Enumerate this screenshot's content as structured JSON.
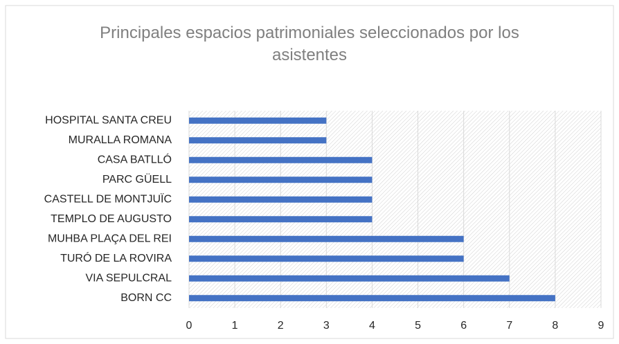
{
  "chart_data": {
    "type": "bar",
    "orientation": "horizontal",
    "title": "Principales espacios patrimoniales seleccionados por los asistentes",
    "categories": [
      "HOSPITAL SANTA CREU",
      "MURALLA ROMANA",
      "CASA BATLLÓ",
      "PARC GÜELL",
      "CASTELL DE MONTJUÏC",
      "TEMPLO DE AUGUSTO",
      "MUHBA PLAÇA DEL REI",
      "TURÓ DE LA ROVIRA",
      "VIA SEPULCRAL",
      "BORN CC"
    ],
    "values": [
      3,
      3,
      4,
      4,
      4,
      4,
      6,
      6,
      7,
      8
    ],
    "color": "#4472c4",
    "xlim": [
      0,
      9
    ],
    "xticks": [
      0,
      1,
      2,
      3,
      4,
      5,
      6,
      7,
      8,
      9
    ],
    "grid": true
  }
}
